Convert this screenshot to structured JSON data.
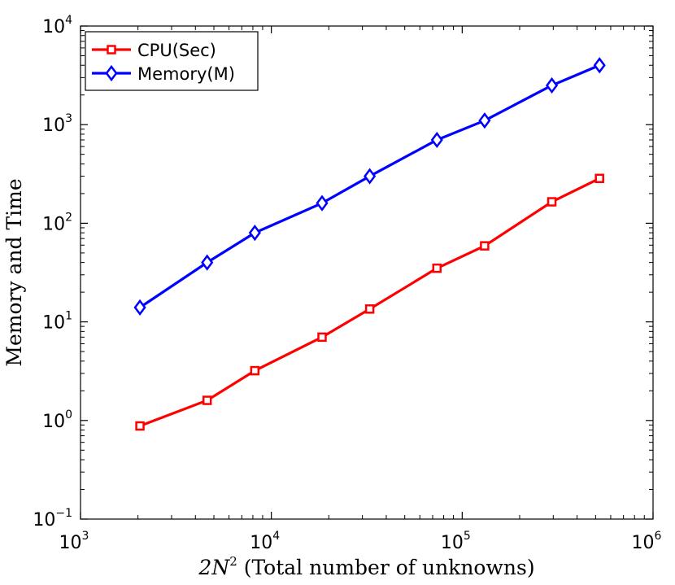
{
  "chart_data": {
    "type": "line",
    "xscale": "log",
    "yscale": "log",
    "xlim": [
      1000,
      1000000
    ],
    "ylim": [
      0.1,
      10000
    ],
    "xticks": [
      {
        "base": "10",
        "exp": "3",
        "value": 1000
      },
      {
        "base": "10",
        "exp": "4",
        "value": 10000
      },
      {
        "base": "10",
        "exp": "5",
        "value": 100000
      },
      {
        "base": "10",
        "exp": "6",
        "value": 1000000
      }
    ],
    "yticks": [
      {
        "base": "10",
        "exp": "−1",
        "value": 0.1
      },
      {
        "base": "10",
        "exp": "0",
        "value": 1
      },
      {
        "base": "10",
        "exp": "1",
        "value": 10
      },
      {
        "base": "10",
        "exp": "2",
        "value": 100
      },
      {
        "base": "10",
        "exp": "3",
        "value": 1000
      },
      {
        "base": "10",
        "exp": "4",
        "value": 10000
      }
    ],
    "xlabel": {
      "math_base": "2N",
      "math_exp": "2",
      "text": " (Total number of unknowns)"
    },
    "ylabel": "Memory and Time",
    "legend_position": "top-left",
    "grid": false,
    "series": [
      {
        "name": "CPU(Sec)",
        "color": "#ff0000",
        "marker": "square",
        "x": [
          2048,
          4608,
          8192,
          18432,
          32768,
          73728,
          131072,
          294912,
          524288
        ],
        "y": [
          0.88,
          1.6,
          3.2,
          7,
          13.5,
          35,
          59,
          165,
          285
        ]
      },
      {
        "name": "Memory(M)",
        "color": "#0000ff",
        "marker": "diamond",
        "x": [
          2048,
          4608,
          8192,
          18432,
          32768,
          73728,
          131072,
          294912,
          524288
        ],
        "y": [
          14,
          40,
          80,
          160,
          300,
          700,
          1100,
          2500,
          4000
        ]
      }
    ]
  }
}
